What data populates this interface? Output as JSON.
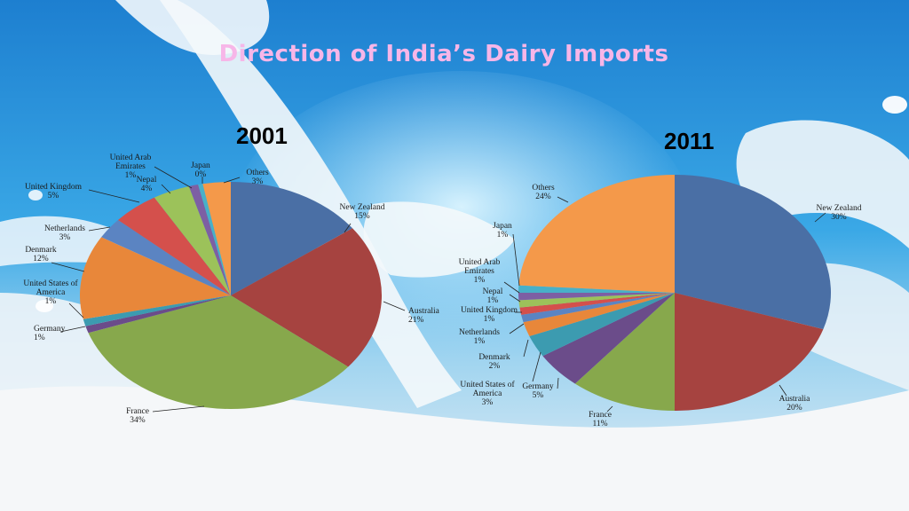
{
  "title": "Direction of India’s Dairy Imports",
  "colors": {
    "title": "#f7b6e8",
    "sky": "#1e90d8"
  },
  "chart_data": [
    {
      "type": "pie",
      "title": "2001",
      "slices": [
        {
          "name": "New Zealand",
          "value": 15,
          "label": [
            "New Zealand",
            "15%"
          ],
          "color": "#4a6fa5"
        },
        {
          "name": "Australia",
          "value": 21,
          "label": [
            "Australia",
            "21%"
          ],
          "color": "#a64340"
        },
        {
          "name": "France",
          "value": 34,
          "label": [
            "France",
            "34%"
          ],
          "color": "#87a84c"
        },
        {
          "name": "Germany",
          "value": 1,
          "label": [
            "Germany",
            "1%"
          ],
          "color": "#6b4c8a"
        },
        {
          "name": "United States of America",
          "value": 1,
          "label": [
            "United States of",
            "America",
            "1%"
          ],
          "color": "#3c9bb0"
        },
        {
          "name": "Denmark",
          "value": 12,
          "label": [
            "Denmark",
            "12%"
          ],
          "color": "#e8873a"
        },
        {
          "name": "Netherlands",
          "value": 3,
          "label": [
            "Netherlands",
            "3%"
          ],
          "color": "#5b84c2"
        },
        {
          "name": "United Kingdom",
          "value": 5,
          "label": [
            "United Kingdom",
            "5%"
          ],
          "color": "#d4504c"
        },
        {
          "name": "Nepal",
          "value": 4,
          "label": [
            "Nepal",
            "4%"
          ],
          "color": "#9cc25a"
        },
        {
          "name": "United Arab Emirates",
          "value": 1,
          "label": [
            "United Arab",
            "Emirates",
            "1%"
          ],
          "color": "#7d5fa3"
        },
        {
          "name": "Japan",
          "value": 0.5,
          "label": [
            "Japan",
            "0%"
          ],
          "color": "#48b0c8"
        },
        {
          "name": "Others",
          "value": 3,
          "label": [
            "Others",
            "3%"
          ],
          "color": "#f4994a"
        }
      ]
    },
    {
      "type": "pie",
      "title": "2011",
      "slices": [
        {
          "name": "New Zealand",
          "value": 30,
          "label": [
            "New Zealand",
            "30%"
          ],
          "color": "#4a6fa5"
        },
        {
          "name": "Australia",
          "value": 20,
          "label": [
            "Australia",
            "20%"
          ],
          "color": "#a64340"
        },
        {
          "name": "France",
          "value": 11,
          "label": [
            "France",
            "11%"
          ],
          "color": "#87a84c"
        },
        {
          "name": "Germany",
          "value": 5,
          "label": [
            "Germany",
            "5%"
          ],
          "color": "#6b4c8a"
        },
        {
          "name": "United States of America",
          "value": 3,
          "label": [
            "United States of",
            "America",
            "3%"
          ],
          "color": "#3c9bb0"
        },
        {
          "name": "Denmark",
          "value": 2,
          "label": [
            "Denmark",
            "2%"
          ],
          "color": "#e8873a"
        },
        {
          "name": "Netherlands",
          "value": 1,
          "label": [
            "Netherlands",
            "1%"
          ],
          "color": "#5b84c2"
        },
        {
          "name": "United Kingdom",
          "value": 1,
          "label": [
            "United Kingdom",
            "1%"
          ],
          "color": "#d4504c"
        },
        {
          "name": "Nepal",
          "value": 1,
          "label": [
            "Nepal",
            "1%"
          ],
          "color": "#9cc25a"
        },
        {
          "name": "United Arab Emirates",
          "value": 1,
          "label": [
            "United Arab",
            "Emirates",
            "1%"
          ],
          "color": "#7d5fa3"
        },
        {
          "name": "Japan",
          "value": 1,
          "label": [
            "Japan",
            "1%"
          ],
          "color": "#48b0c8"
        },
        {
          "name": "Others",
          "value": 24,
          "label": [
            "Others",
            "24%"
          ],
          "color": "#f4994a"
        }
      ]
    }
  ]
}
